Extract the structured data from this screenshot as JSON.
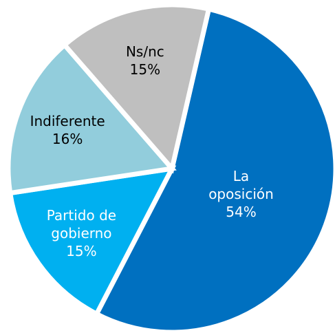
{
  "chart_data": {
    "type": "pie",
    "categories": [
      "La\noposición",
      "Partido de\ngobierno",
      "Indiferente",
      "Ns/nc"
    ],
    "values": [
      54,
      15,
      16,
      15
    ],
    "value_labels": [
      "54%",
      "15%",
      "16%",
      "15%"
    ],
    "colors": [
      "#0070c0",
      "#00b0f0",
      "#92cddc",
      "#bfbfbf"
    ],
    "label_colors": [
      "#ffffff",
      "#ffffff",
      "#000000",
      "#000000"
    ]
  }
}
